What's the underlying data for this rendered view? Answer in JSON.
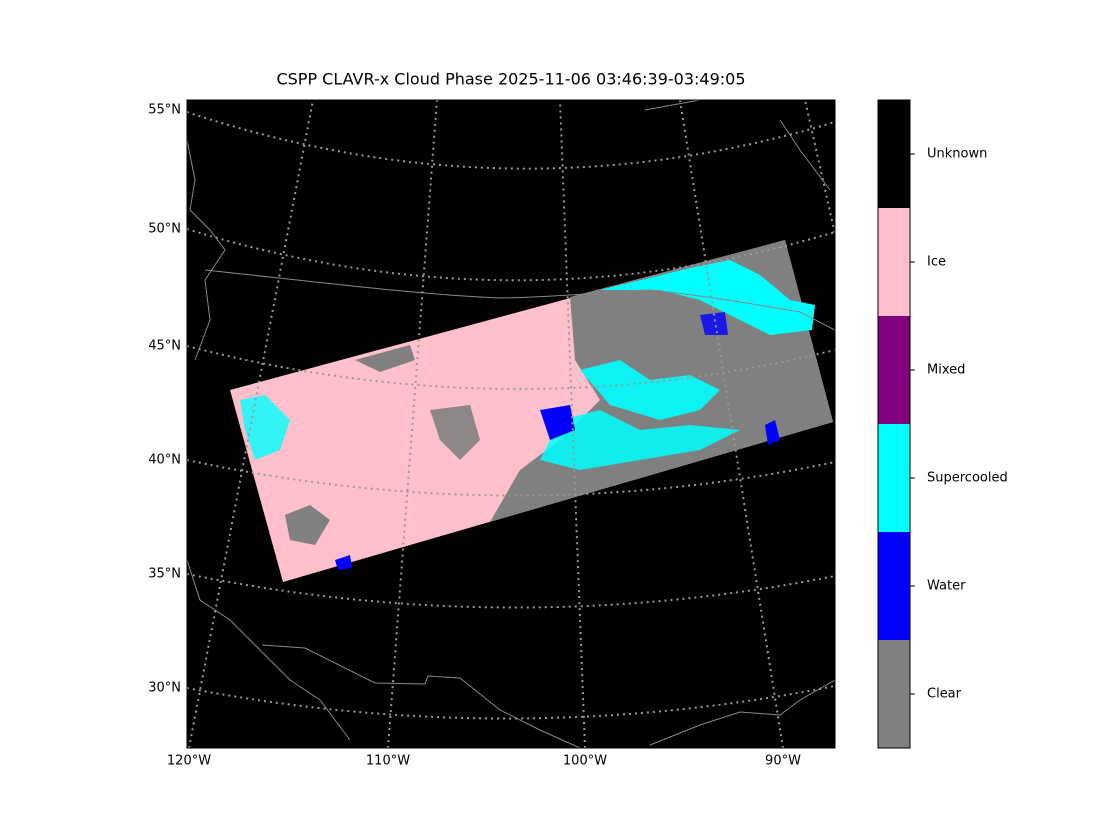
{
  "title": "CSPP CLAVR-x Cloud Phase 2025-11-06 03:46:39-03:49:05",
  "lat_labels": [
    "55°N",
    "50°N",
    "45°N",
    "40°N",
    "35°N",
    "30°N"
  ],
  "lon_labels": [
    "120°W",
    "110°W",
    "100°W",
    "90°W"
  ],
  "legend": {
    "items": [
      {
        "label": "Unknown",
        "color": "#000000"
      },
      {
        "label": "Ice",
        "color": "#ffc0cb"
      },
      {
        "label": "Mixed",
        "color": "#800080"
      },
      {
        "label": "Supercooled",
        "color": "#00ffff"
      },
      {
        "label": "Water",
        "color": "#0000ff"
      },
      {
        "label": "Clear",
        "color": "#808080"
      }
    ]
  }
}
